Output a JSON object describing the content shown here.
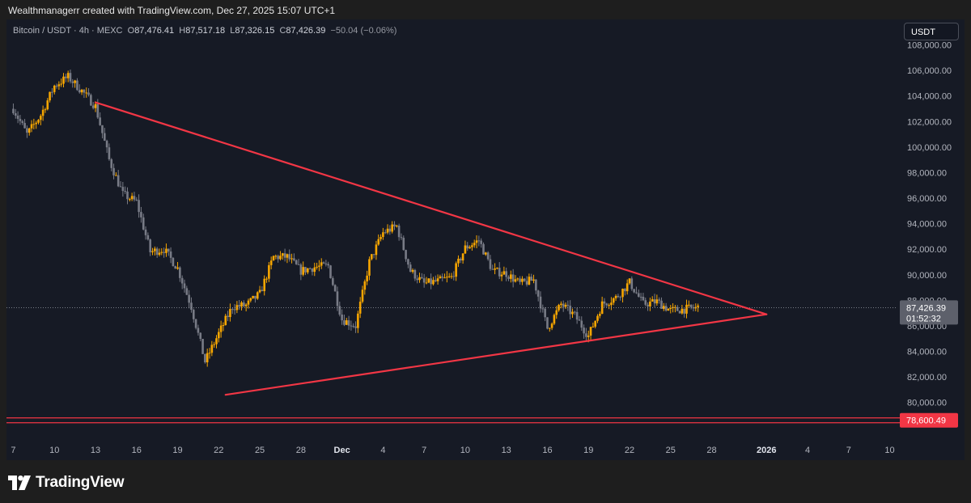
{
  "header": {
    "attribution": "Wealthmanagerr created with TradingView.com, Dec 27, 2025 15:07 UTC+1"
  },
  "legend": {
    "symbol": "Bitcoin / USDT · 4h · MEXC",
    "open_label": "O",
    "open": "87,476.41",
    "high_label": "H",
    "high": "87,517.18",
    "low_label": "L",
    "low": "87,326.15",
    "close_label": "C",
    "close": "87,426.39",
    "change": "−50.04 (−0.06%)"
  },
  "currency_button": "USDT",
  "current_price": {
    "value": "87,426.39",
    "countdown": "01:52:32"
  },
  "support_level": {
    "value": "78,600.49",
    "price": 78600.49
  },
  "footer": {
    "brand": "TradingView"
  },
  "colors": {
    "background": "#161a25",
    "candle_up": "#f7a600",
    "candle_down": "#787b86",
    "trendline": "#f23645",
    "axis_text": "#b2b5be"
  },
  "chart_data": {
    "type": "candlestick",
    "symbol": "Bitcoin / USDT",
    "interval": "4h",
    "exchange": "MEXC",
    "y_axis": {
      "ticks": [
        80000,
        82000,
        84000,
        86000,
        88000,
        90000,
        92000,
        94000,
        96000,
        98000,
        100000,
        102000,
        104000,
        106000,
        108000
      ],
      "tick_labels": [
        "80,000.00",
        "82,000.00",
        "84,000.00",
        "86,000.00",
        "88,000.00",
        "90,000.00",
        "92,000.00",
        "94,000.00",
        "96,000.00",
        "98,000.00",
        "100,000.00",
        "102,000.00",
        "104,000.00",
        "106,000.00",
        "108,000.00"
      ],
      "ylim": [
        77000,
        110000
      ]
    },
    "x_axis": {
      "ticks": [
        {
          "label": "7",
          "day": 0
        },
        {
          "label": "10",
          "day": 3
        },
        {
          "label": "13",
          "day": 6
        },
        {
          "label": "16",
          "day": 9
        },
        {
          "label": "19",
          "day": 12
        },
        {
          "label": "22",
          "day": 15
        },
        {
          "label": "25",
          "day": 18
        },
        {
          "label": "28",
          "day": 21
        },
        {
          "label": "Dec",
          "day": 24,
          "bold": true
        },
        {
          "label": "4",
          "day": 27
        },
        {
          "label": "7",
          "day": 30
        },
        {
          "label": "10",
          "day": 33
        },
        {
          "label": "13",
          "day": 36
        },
        {
          "label": "16",
          "day": 39
        },
        {
          "label": "19",
          "day": 42
        },
        {
          "label": "22",
          "day": 45
        },
        {
          "label": "25",
          "day": 48
        },
        {
          "label": "28",
          "day": 51
        },
        {
          "label": "2026",
          "day": 55,
          "bold": true
        },
        {
          "label": "4",
          "day": 58
        },
        {
          "label": "7",
          "day": 61
        },
        {
          "label": "10",
          "day": 64
        }
      ],
      "xlim": [
        -0.5,
        64.5
      ]
    },
    "price_path": [
      [
        0,
        103000
      ],
      [
        1,
        101000
      ],
      [
        2,
        102500
      ],
      [
        3,
        104800
      ],
      [
        4,
        105500
      ],
      [
        5,
        104400
      ],
      [
        6,
        103200
      ],
      [
        7,
        99000
      ],
      [
        8,
        96300
      ],
      [
        9,
        95700
      ],
      [
        10,
        91800
      ],
      [
        11,
        92000
      ],
      [
        12,
        90500
      ],
      [
        13,
        87500
      ],
      [
        14,
        83200
      ],
      [
        15,
        85400
      ],
      [
        16,
        87500
      ],
      [
        17,
        87600
      ],
      [
        18,
        88500
      ],
      [
        19,
        91400
      ],
      [
        20,
        91400
      ],
      [
        21,
        90300
      ],
      [
        22,
        90600
      ],
      [
        23,
        90700
      ],
      [
        24,
        86500
      ],
      [
        25,
        86000
      ],
      [
        26,
        91000
      ],
      [
        27,
        93300
      ],
      [
        28,
        93800
      ],
      [
        29,
        90300
      ],
      [
        30,
        89300
      ],
      [
        31,
        89500
      ],
      [
        32,
        89800
      ],
      [
        33,
        92100
      ],
      [
        34,
        92700
      ],
      [
        35,
        90300
      ],
      [
        36,
        90100
      ],
      [
        37,
        89300
      ],
      [
        38,
        89600
      ],
      [
        39,
        85800
      ],
      [
        40,
        87700
      ],
      [
        41,
        86800
      ],
      [
        42,
        85200
      ],
      [
        43,
        87700
      ],
      [
        44,
        88200
      ],
      [
        45,
        89400
      ],
      [
        46,
        87700
      ],
      [
        47,
        87900
      ],
      [
        48,
        87200
      ],
      [
        49,
        87300
      ],
      [
        50,
        87426.39
      ]
    ],
    "current_price": 87426.39,
    "support_level": 78600.49,
    "trendlines": [
      {
        "name": "upper",
        "from": [
          6,
          103500
        ],
        "to": [
          55,
          86900
        ]
      },
      {
        "name": "lower",
        "from": [
          15.5,
          80600
        ],
        "to": [
          55,
          86900
        ]
      }
    ],
    "grid": false
  }
}
